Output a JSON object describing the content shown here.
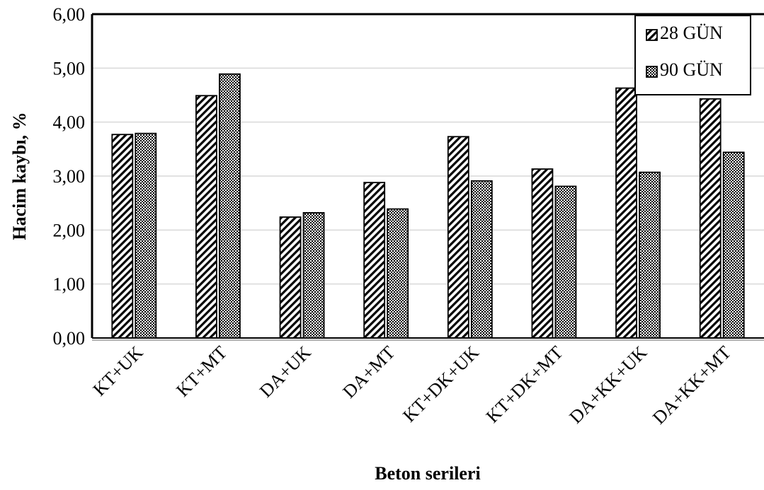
{
  "chart_data": {
    "type": "bar",
    "categories": [
      "KT+UK",
      "KT+MT",
      "DA+UK",
      "DA+MT",
      "KT+DK+UK",
      "KT+DK+MT",
      "DA+KK+UK",
      "DA+KK+MT"
    ],
    "series": [
      {
        "name": "28 GÜN",
        "values": [
          3.77,
          4.49,
          2.24,
          2.88,
          3.73,
          3.13,
          4.63,
          4.43
        ],
        "pattern": "diagonal-hatch"
      },
      {
        "name": "90 GÜN",
        "values": [
          3.79,
          4.89,
          2.32,
          2.39,
          2.91,
          2.81,
          3.07,
          3.44
        ],
        "pattern": "dots"
      }
    ],
    "xlabel": "Beton serileri",
    "ylabel": "Hacim kaybı, %",
    "ylim": [
      0,
      6
    ],
    "yticks": [
      "0,00",
      "1,00",
      "2,00",
      "3,00",
      "4,00",
      "5,00",
      "6,00"
    ],
    "grid": true,
    "legend_position": "top-right"
  }
}
